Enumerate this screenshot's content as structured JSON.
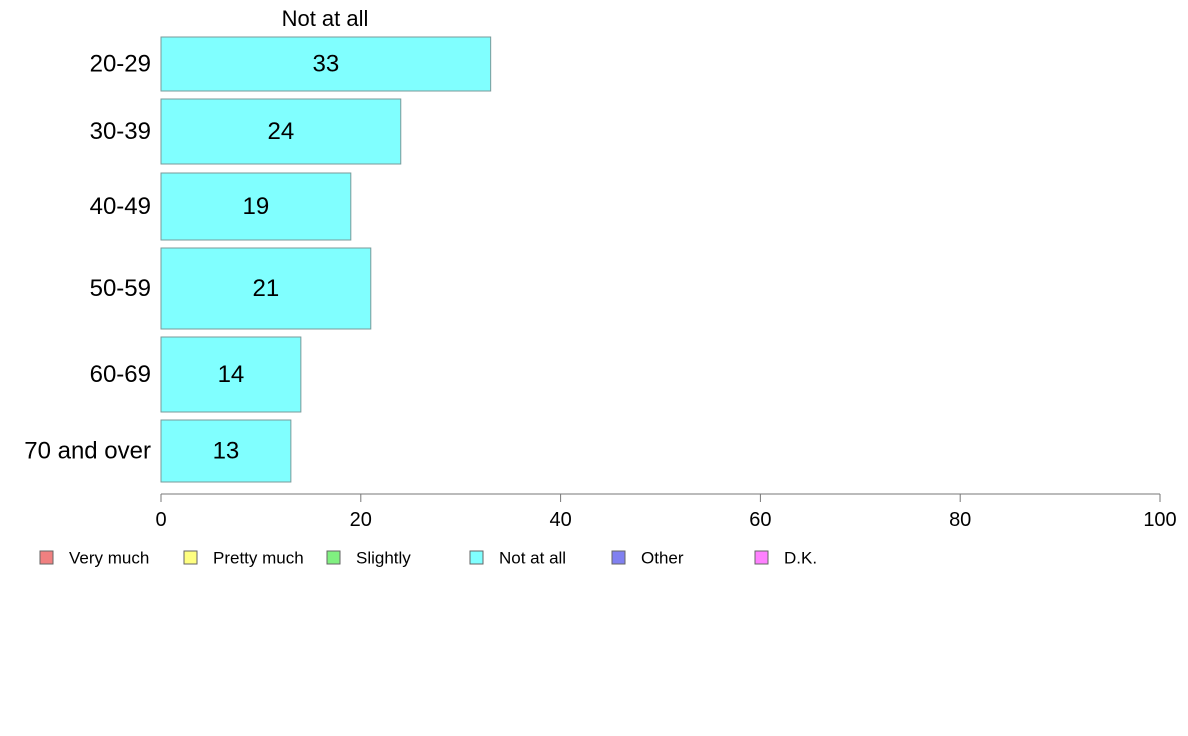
{
  "chart_data": {
    "type": "bar",
    "orientation": "horizontal",
    "panel_title": "Not at all",
    "categories": [
      "20-29",
      "30-39",
      "40-49",
      "50-59",
      "60-69",
      "70 and over"
    ],
    "series": [
      {
        "name": "Not at all",
        "color": "#80ffff",
        "values": [
          33,
          24,
          19,
          21,
          14,
          13
        ]
      }
    ],
    "xlim": [
      0,
      100
    ],
    "xticks": [
      0,
      20,
      40,
      60,
      80,
      100
    ],
    "grid": false,
    "legend_placement": "bottom",
    "legend": [
      {
        "label": "Very much",
        "color": "#f08080"
      },
      {
        "label": "Pretty much",
        "color": "#ffff80"
      },
      {
        "label": "Slightly",
        "color": "#80f080"
      },
      {
        "label": "Not at all",
        "color": "#80ffff"
      },
      {
        "label": "Other",
        "color": "#8080f0"
      },
      {
        "label": "D.K.",
        "color": "#ff80ff"
      }
    ]
  }
}
